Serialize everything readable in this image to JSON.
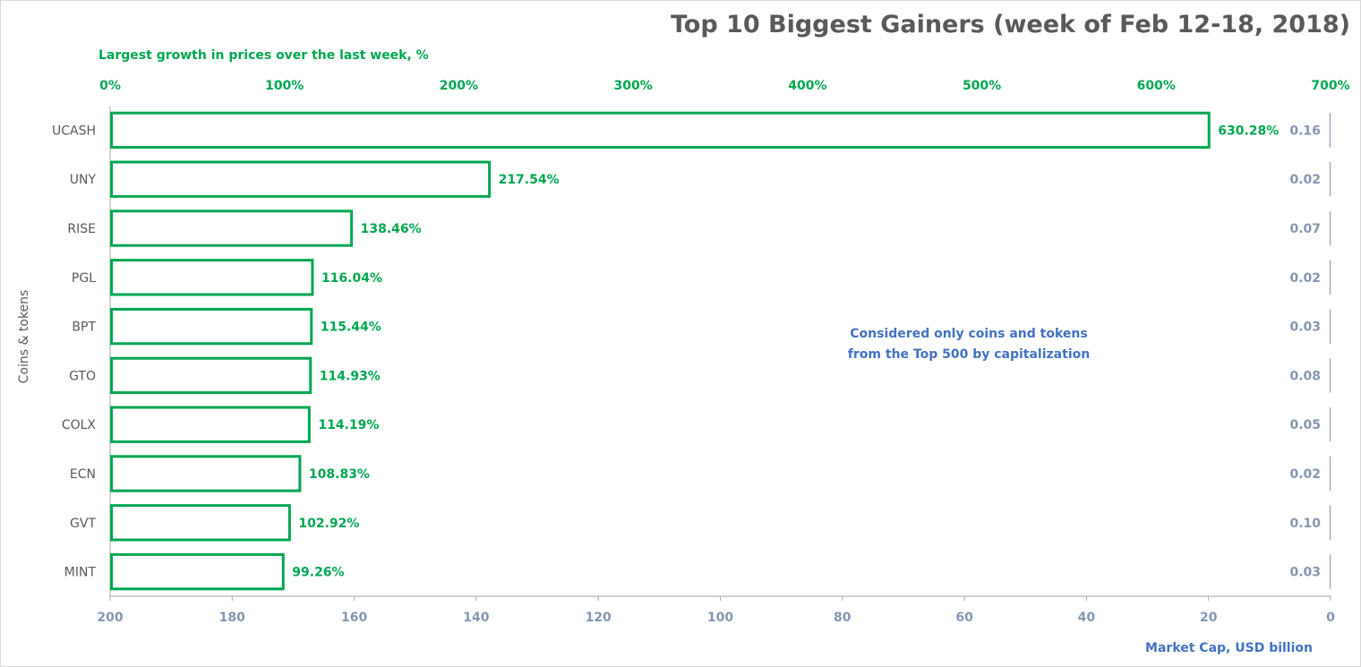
{
  "chart_data": {
    "type": "bar",
    "orientation": "horizontal",
    "title": "Top 10 Biggest Gainers (week of Feb 12-18, 2018)",
    "top_axis_title": "Largest growth in prices over the last week, %",
    "top_axis_ticks": [
      "0%",
      "100%",
      "200%",
      "300%",
      "400%",
      "500%",
      "600%",
      "700%"
    ],
    "top_axis_range": [
      0,
      700
    ],
    "bottom_axis_title": "Market Cap,  USD billion",
    "bottom_axis_ticks": [
      "200",
      "180",
      "160",
      "140",
      "120",
      "100",
      "80",
      "60",
      "40",
      "20",
      "0"
    ],
    "bottom_axis_range": [
      200,
      0
    ],
    "ylabel": "Coins & tokens",
    "note_lines": [
      "Considered only coins and tokens",
      "from the Top 500 by capitalization"
    ],
    "categories": [
      "UCASH",
      "UNY",
      "RISE",
      "PGL",
      "BPT",
      "GTO",
      "COLX",
      "ECN",
      "GVT",
      "MINT"
    ],
    "growth_values": [
      630.28,
      217.54,
      138.46,
      116.04,
      115.44,
      114.93,
      114.19,
      108.83,
      102.92,
      99.26
    ],
    "growth_labels": [
      "630.28%",
      "217.54%",
      "138.46%",
      "116.04%",
      "115.44%",
      "114.93%",
      "114.19%",
      "108.83%",
      "102.92%",
      "99.26%"
    ],
    "market_cap_values": [
      0.16,
      0.02,
      0.07,
      0.02,
      0.03,
      0.08,
      0.05,
      0.02,
      0.1,
      0.03
    ],
    "market_cap_labels": [
      "0.16",
      "0.02",
      "0.07",
      "0.02",
      "0.03",
      "0.08",
      "0.05",
      "0.02",
      "0.10",
      "0.03"
    ],
    "colors": {
      "growth": "#00a651",
      "market_cap": "#8497b0",
      "note": "#4472c4",
      "title": "#595959"
    },
    "grid": false
  }
}
